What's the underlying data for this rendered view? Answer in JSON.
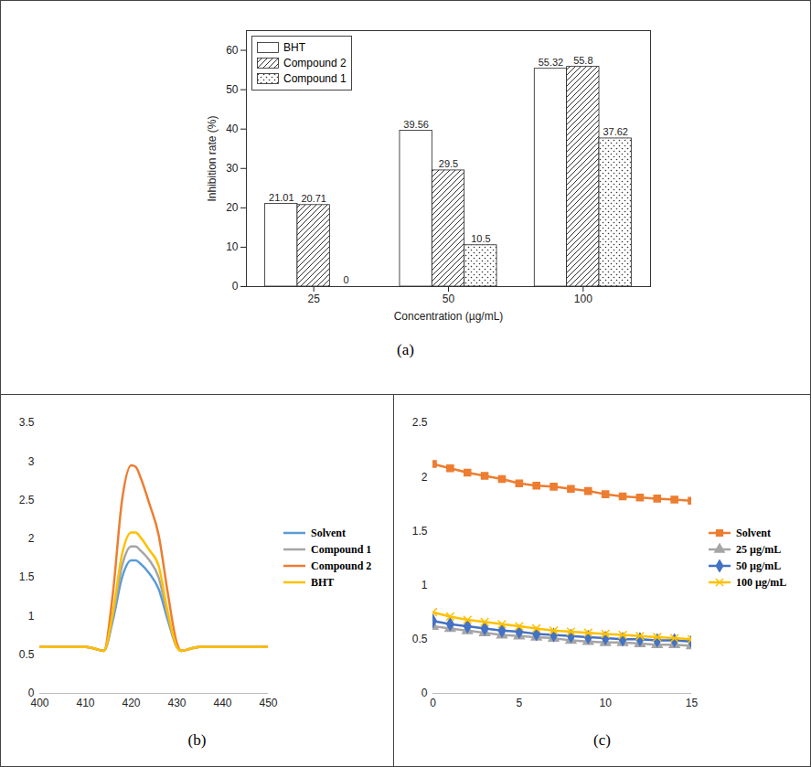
{
  "chart_data": [
    {
      "type": "bar",
      "caption": "(a)",
      "xlabel": "Concentration (µg/mL)",
      "ylabel": "Inhibition rate (%)",
      "categories": [
        "25",
        "50",
        "100"
      ],
      "series": [
        {
          "name": "BHT",
          "color": "#ffffff",
          "values": [
            21.01,
            39.56,
            55.32
          ]
        },
        {
          "name": "Compound 2",
          "color": "#ffffff",
          "values": [
            20.71,
            29.5,
            55.8
          ]
        },
        {
          "name": "Compound 1",
          "color": "#ffffff",
          "values": [
            0,
            10.5,
            37.62
          ]
        }
      ],
      "ylim": [
        0,
        65
      ],
      "yticks": [
        0,
        10,
        20,
        30,
        40,
        50,
        60
      ],
      "grid": false,
      "legend": "top-left",
      "data_labels": true
    },
    {
      "type": "line",
      "caption": "(b)",
      "x": [
        400,
        405,
        410,
        412,
        414,
        416,
        418,
        420,
        421,
        422,
        424,
        426,
        428,
        430,
        431,
        433,
        435,
        440,
        445,
        450
      ],
      "series": [
        {
          "name": "Solvent",
          "color": "#5b9bd5",
          "values": [
            0.6,
            0.6,
            0.6,
            0.58,
            0.55,
            0.95,
            1.5,
            1.72,
            1.72,
            1.68,
            1.55,
            1.35,
            0.95,
            0.6,
            0.55,
            0.58,
            0.6,
            0.6,
            0.6,
            0.6
          ]
        },
        {
          "name": "Compound 1",
          "color": "#a5a5a5",
          "values": [
            0.6,
            0.6,
            0.6,
            0.58,
            0.55,
            1.0,
            1.65,
            1.9,
            1.9,
            1.85,
            1.72,
            1.5,
            1.0,
            0.6,
            0.55,
            0.58,
            0.6,
            0.6,
            0.6,
            0.6
          ]
        },
        {
          "name": "Compound 2",
          "color": "#ed7d31",
          "values": [
            0.6,
            0.6,
            0.6,
            0.58,
            0.55,
            1.3,
            2.5,
            2.95,
            2.93,
            2.8,
            2.45,
            2.05,
            1.3,
            0.65,
            0.55,
            0.58,
            0.6,
            0.6,
            0.6,
            0.6
          ]
        },
        {
          "name": "BHT",
          "color": "#ffc000",
          "values": [
            0.6,
            0.6,
            0.6,
            0.58,
            0.55,
            1.05,
            1.8,
            2.08,
            2.08,
            2.02,
            1.85,
            1.65,
            1.05,
            0.6,
            0.55,
            0.58,
            0.6,
            0.6,
            0.6,
            0.6
          ]
        }
      ],
      "xlim": [
        400,
        450
      ],
      "xticks": [
        400,
        410,
        420,
        430,
        440,
        450
      ],
      "ylim": [
        0,
        3.5
      ],
      "yticks": [
        0,
        0.5,
        1,
        1.5,
        2,
        2.5,
        3,
        3.5
      ],
      "grid": false,
      "legend": "right"
    },
    {
      "type": "line",
      "caption": "(c)",
      "x": [
        0,
        1,
        2,
        3,
        4,
        5,
        6,
        7,
        8,
        9,
        10,
        11,
        12,
        13,
        14,
        15
      ],
      "series": [
        {
          "name": "Solvent",
          "color": "#ed7d31",
          "marker": "square",
          "values": [
            2.12,
            2.08,
            2.04,
            2.01,
            1.98,
            1.94,
            1.92,
            1.91,
            1.89,
            1.87,
            1.84,
            1.82,
            1.81,
            1.8,
            1.79,
            1.78
          ]
        },
        {
          "name": "25 µg/mL",
          "color": "#a5a5a5",
          "marker": "triangle",
          "values": [
            0.62,
            0.6,
            0.58,
            0.56,
            0.54,
            0.53,
            0.52,
            0.51,
            0.49,
            0.48,
            0.47,
            0.47,
            0.46,
            0.45,
            0.45,
            0.44
          ]
        },
        {
          "name": "50 µg/mL",
          "color": "#4472c4",
          "marker": "diamond",
          "values": [
            0.67,
            0.64,
            0.62,
            0.6,
            0.58,
            0.57,
            0.55,
            0.54,
            0.53,
            0.52,
            0.51,
            0.5,
            0.5,
            0.49,
            0.49,
            0.48
          ]
        },
        {
          "name": "100 µg/mL",
          "color": "#ffc000",
          "marker": "times",
          "values": [
            0.75,
            0.71,
            0.68,
            0.66,
            0.64,
            0.62,
            0.6,
            0.58,
            0.57,
            0.56,
            0.55,
            0.54,
            0.53,
            0.52,
            0.51,
            0.5
          ]
        }
      ],
      "xlim": [
        0,
        15
      ],
      "xticks": [
        0,
        5,
        10,
        15
      ],
      "ylim": [
        0,
        2.5
      ],
      "yticks": [
        0,
        0.5,
        1,
        1.5,
        2,
        2.5
      ],
      "grid": false,
      "legend": "right"
    }
  ]
}
